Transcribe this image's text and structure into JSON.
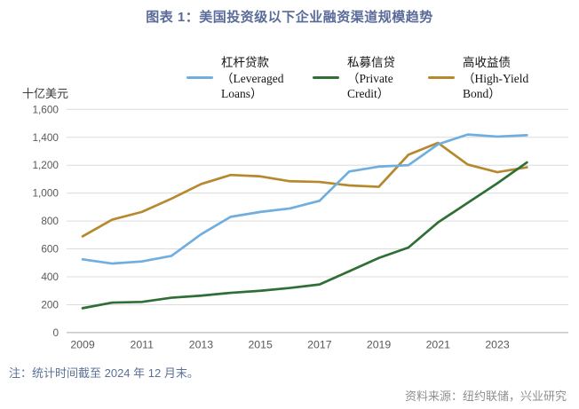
{
  "footnote": "注：统计时间截至 2024 年 12 月末。",
  "source": "资料来源：纽约联储，兴业研究",
  "chart_data": {
    "type": "line",
    "title": "图表 1：美国投资级以下企业融资渠道规模趋势",
    "ylabel": "十亿美元",
    "xlabel": "",
    "x": [
      2009,
      2010,
      2011,
      2012,
      2013,
      2014,
      2015,
      2016,
      2017,
      2018,
      2019,
      2020,
      2021,
      2022,
      2023,
      2024
    ],
    "x_tick_labels": [
      "2009",
      "2011",
      "2013",
      "2015",
      "2017",
      "2019",
      "2021",
      "2023"
    ],
    "y_ticks": {
      "values": [
        0,
        200,
        400,
        600,
        800,
        1000,
        1200,
        1400,
        1600
      ],
      "labels": [
        "0",
        "200",
        "400",
        "600",
        "800",
        "1,000",
        "1,200",
        "1,400",
        "1,600"
      ]
    },
    "ylim": [
      0,
      1600
    ],
    "grid": "horizontal",
    "legend_position": "top",
    "series": [
      {
        "name": "杠杆贷款（Leveraged Loans）",
        "legend_label": "杠杆贷款\n（Leveraged\nLoans）",
        "color": "#6faedf",
        "values": [
          525,
          495,
          510,
          550,
          705,
          830,
          865,
          890,
          945,
          1155,
          1190,
          1200,
          1350,
          1420,
          1405,
          1415
        ]
      },
      {
        "name": "私募信贷（Private Credit）",
        "legend_label": "私募信贷\n（Private\nCredit）",
        "color": "#2f6f35",
        "values": [
          175,
          215,
          220,
          250,
          265,
          285,
          300,
          320,
          345,
          440,
          535,
          610,
          790,
          930,
          1070,
          1220
        ]
      },
      {
        "name": "高收益债（High-Yield Bond）",
        "legend_label": "高收益债\n（High-Yield\nBond）",
        "color": "#b6892f",
        "values": [
          690,
          810,
          865,
          960,
          1065,
          1130,
          1120,
          1085,
          1080,
          1055,
          1045,
          1275,
          1360,
          1205,
          1150,
          1185
        ]
      }
    ]
  }
}
